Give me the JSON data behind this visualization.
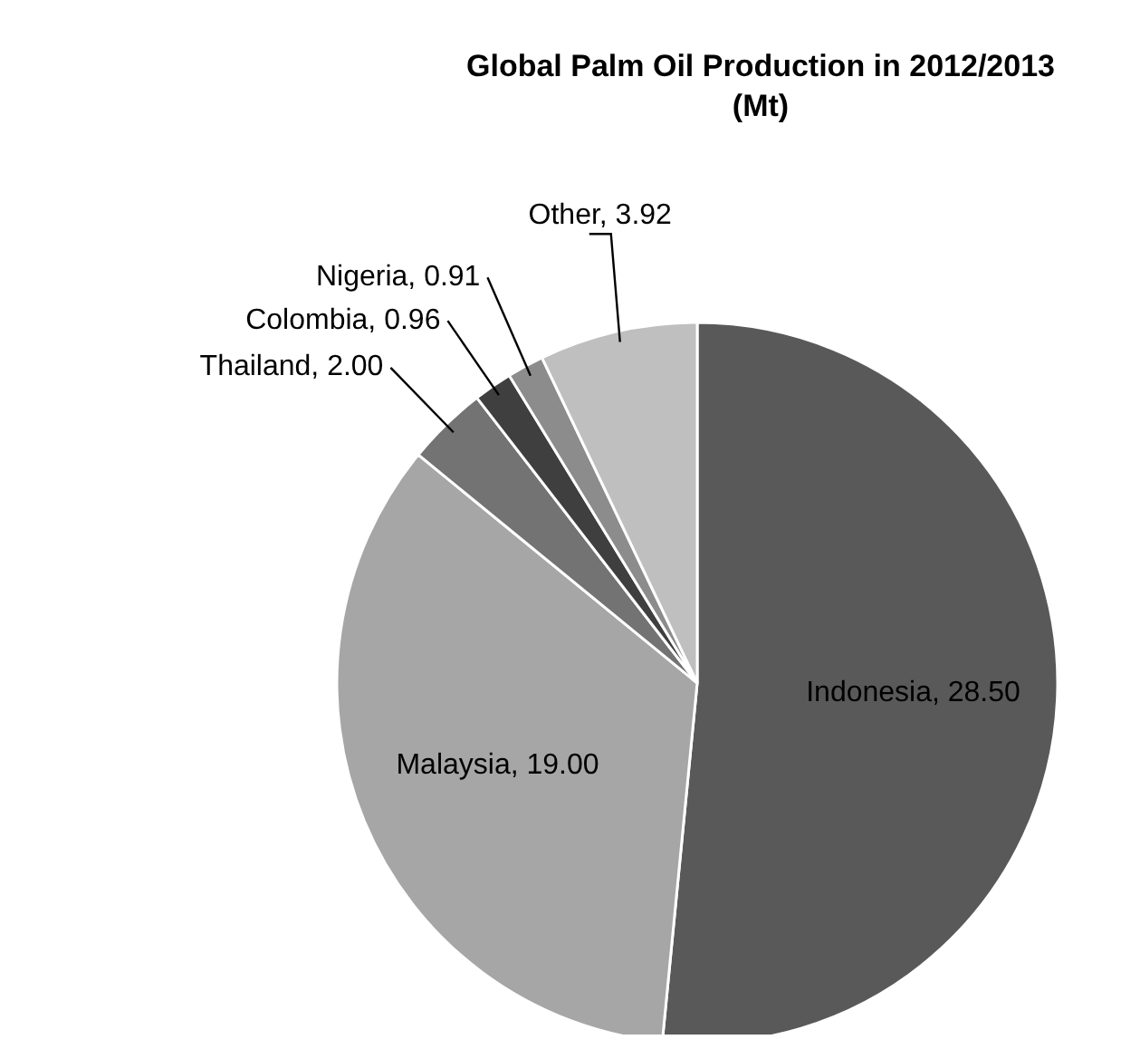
{
  "chart_data": {
    "type": "pie",
    "title": "Global Palm Oil Production in 2012/2013 (Mt)",
    "categories": [
      "Indonesia",
      "Malaysia",
      "Thailand",
      "Colombia",
      "Nigeria",
      "Other"
    ],
    "values": [
      28.5,
      19.0,
      2.0,
      0.96,
      0.91,
      3.92
    ],
    "value_labels": [
      "28.50",
      "19.00",
      "2.00",
      "0.96",
      "0.91",
      "3.92"
    ],
    "colors": [
      "#595959",
      "#a6a6a6",
      "#737373",
      "#3f3f3f",
      "#8c8c8c",
      "#bfbfbf"
    ]
  }
}
